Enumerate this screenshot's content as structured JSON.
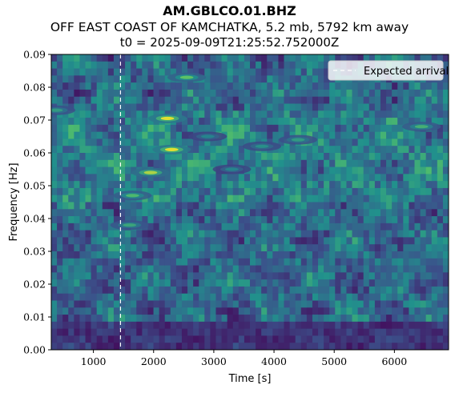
{
  "header": {
    "station": "AM.GBLCO.01.BHZ",
    "event": "OFF EAST COAST OF KAMCHATKA, 5.2 mb, 5792 km away",
    "t0": "t0 = 2025-09-09T21:25:52.752000Z"
  },
  "chart_data": {
    "type": "heatmap",
    "xlabel": "Time [s]",
    "ylabel": "Frequency [Hz]",
    "xlim": [
      300,
      6900
    ],
    "ylim": [
      0,
      0.09
    ],
    "x_ticks": [
      {
        "value": 1000,
        "label": "1000"
      },
      {
        "value": 2000,
        "label": "2000"
      },
      {
        "value": 3000,
        "label": "3000"
      },
      {
        "value": 4000,
        "label": "4000"
      },
      {
        "value": 5000,
        "label": "5000"
      },
      {
        "value": 6000,
        "label": "6000"
      }
    ],
    "y_ticks": [
      {
        "value": 0,
        "label": "0.00"
      },
      {
        "value": 0.01,
        "label": "0.01"
      },
      {
        "value": 0.02,
        "label": "0.02"
      },
      {
        "value": 0.03,
        "label": "0.03"
      },
      {
        "value": 0.04,
        "label": "0.04"
      },
      {
        "value": 0.05,
        "label": "0.05"
      },
      {
        "value": 0.06,
        "label": "0.06"
      },
      {
        "value": 0.07,
        "label": "0.07"
      },
      {
        "value": 0.08,
        "label": "0.08"
      },
      {
        "value": 0.09,
        "label": "0.09"
      }
    ],
    "colormap": "viridis",
    "expected_arrival": {
      "label": "Expected arrival",
      "time": 1450,
      "color": "#ffffff"
    },
    "legend_position": "top-right",
    "hotspots": [
      {
        "t": 2230,
        "f": 0.0705,
        "intensity": 1.0
      },
      {
        "t": 2300,
        "f": 0.061,
        "intensity": 1.0
      },
      {
        "t": 1950,
        "f": 0.054,
        "intensity": 0.9
      },
      {
        "t": 2550,
        "f": 0.083,
        "intensity": 0.75
      },
      {
        "t": 1650,
        "f": 0.047,
        "intensity": 0.7
      },
      {
        "t": 1600,
        "f": 0.038,
        "intensity": 0.6
      },
      {
        "t": 6450,
        "f": 0.068,
        "intensity": 0.65
      },
      {
        "t": 4400,
        "f": 0.064,
        "intensity": 0.55
      },
      {
        "t": 3800,
        "f": 0.062,
        "intensity": 0.5
      },
      {
        "t": 3300,
        "f": 0.055,
        "intensity": 0.45
      },
      {
        "t": 380,
        "f": 0.073,
        "intensity": 0.55
      },
      {
        "t": 2900,
        "f": 0.065,
        "intensity": 0.45
      }
    ]
  }
}
